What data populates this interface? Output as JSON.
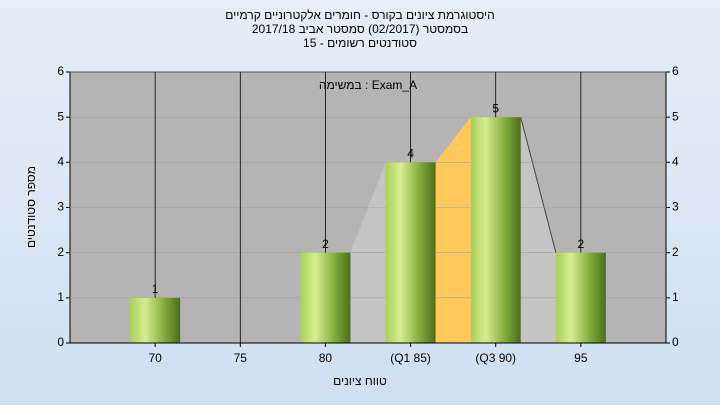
{
  "chart_data": {
    "type": "bar",
    "title": "היסטוגרמת ציונים בקורס - חומרים אלקטרוניים קרמיים",
    "subtitle": "בסמסטר  (02/2017)  סמסטר אביב 2017/18",
    "subtitle2": "סטודנטים רשומים - 15",
    "annotation": "במשימה : Exam_A",
    "xlabel": "טווח ציונים",
    "ylabel": "מספר סטודנטים",
    "categories": [
      "70",
      "75",
      "80",
      "(Q1 85)",
      "(Q3 90)",
      "95"
    ],
    "values": [
      1,
      0,
      2,
      4,
      5,
      2
    ],
    "value_labels": [
      "1",
      null,
      "2",
      "4",
      "5",
      "2"
    ],
    "color": "#8fbf3a",
    "ylim": [
      0,
      6
    ],
    "yticks": [
      0,
      1,
      2,
      3,
      4,
      5,
      6
    ],
    "y2lim": [
      0,
      6
    ],
    "y2ticks": [
      0,
      1,
      2,
      3,
      4,
      5,
      6
    ],
    "grid": true
  }
}
